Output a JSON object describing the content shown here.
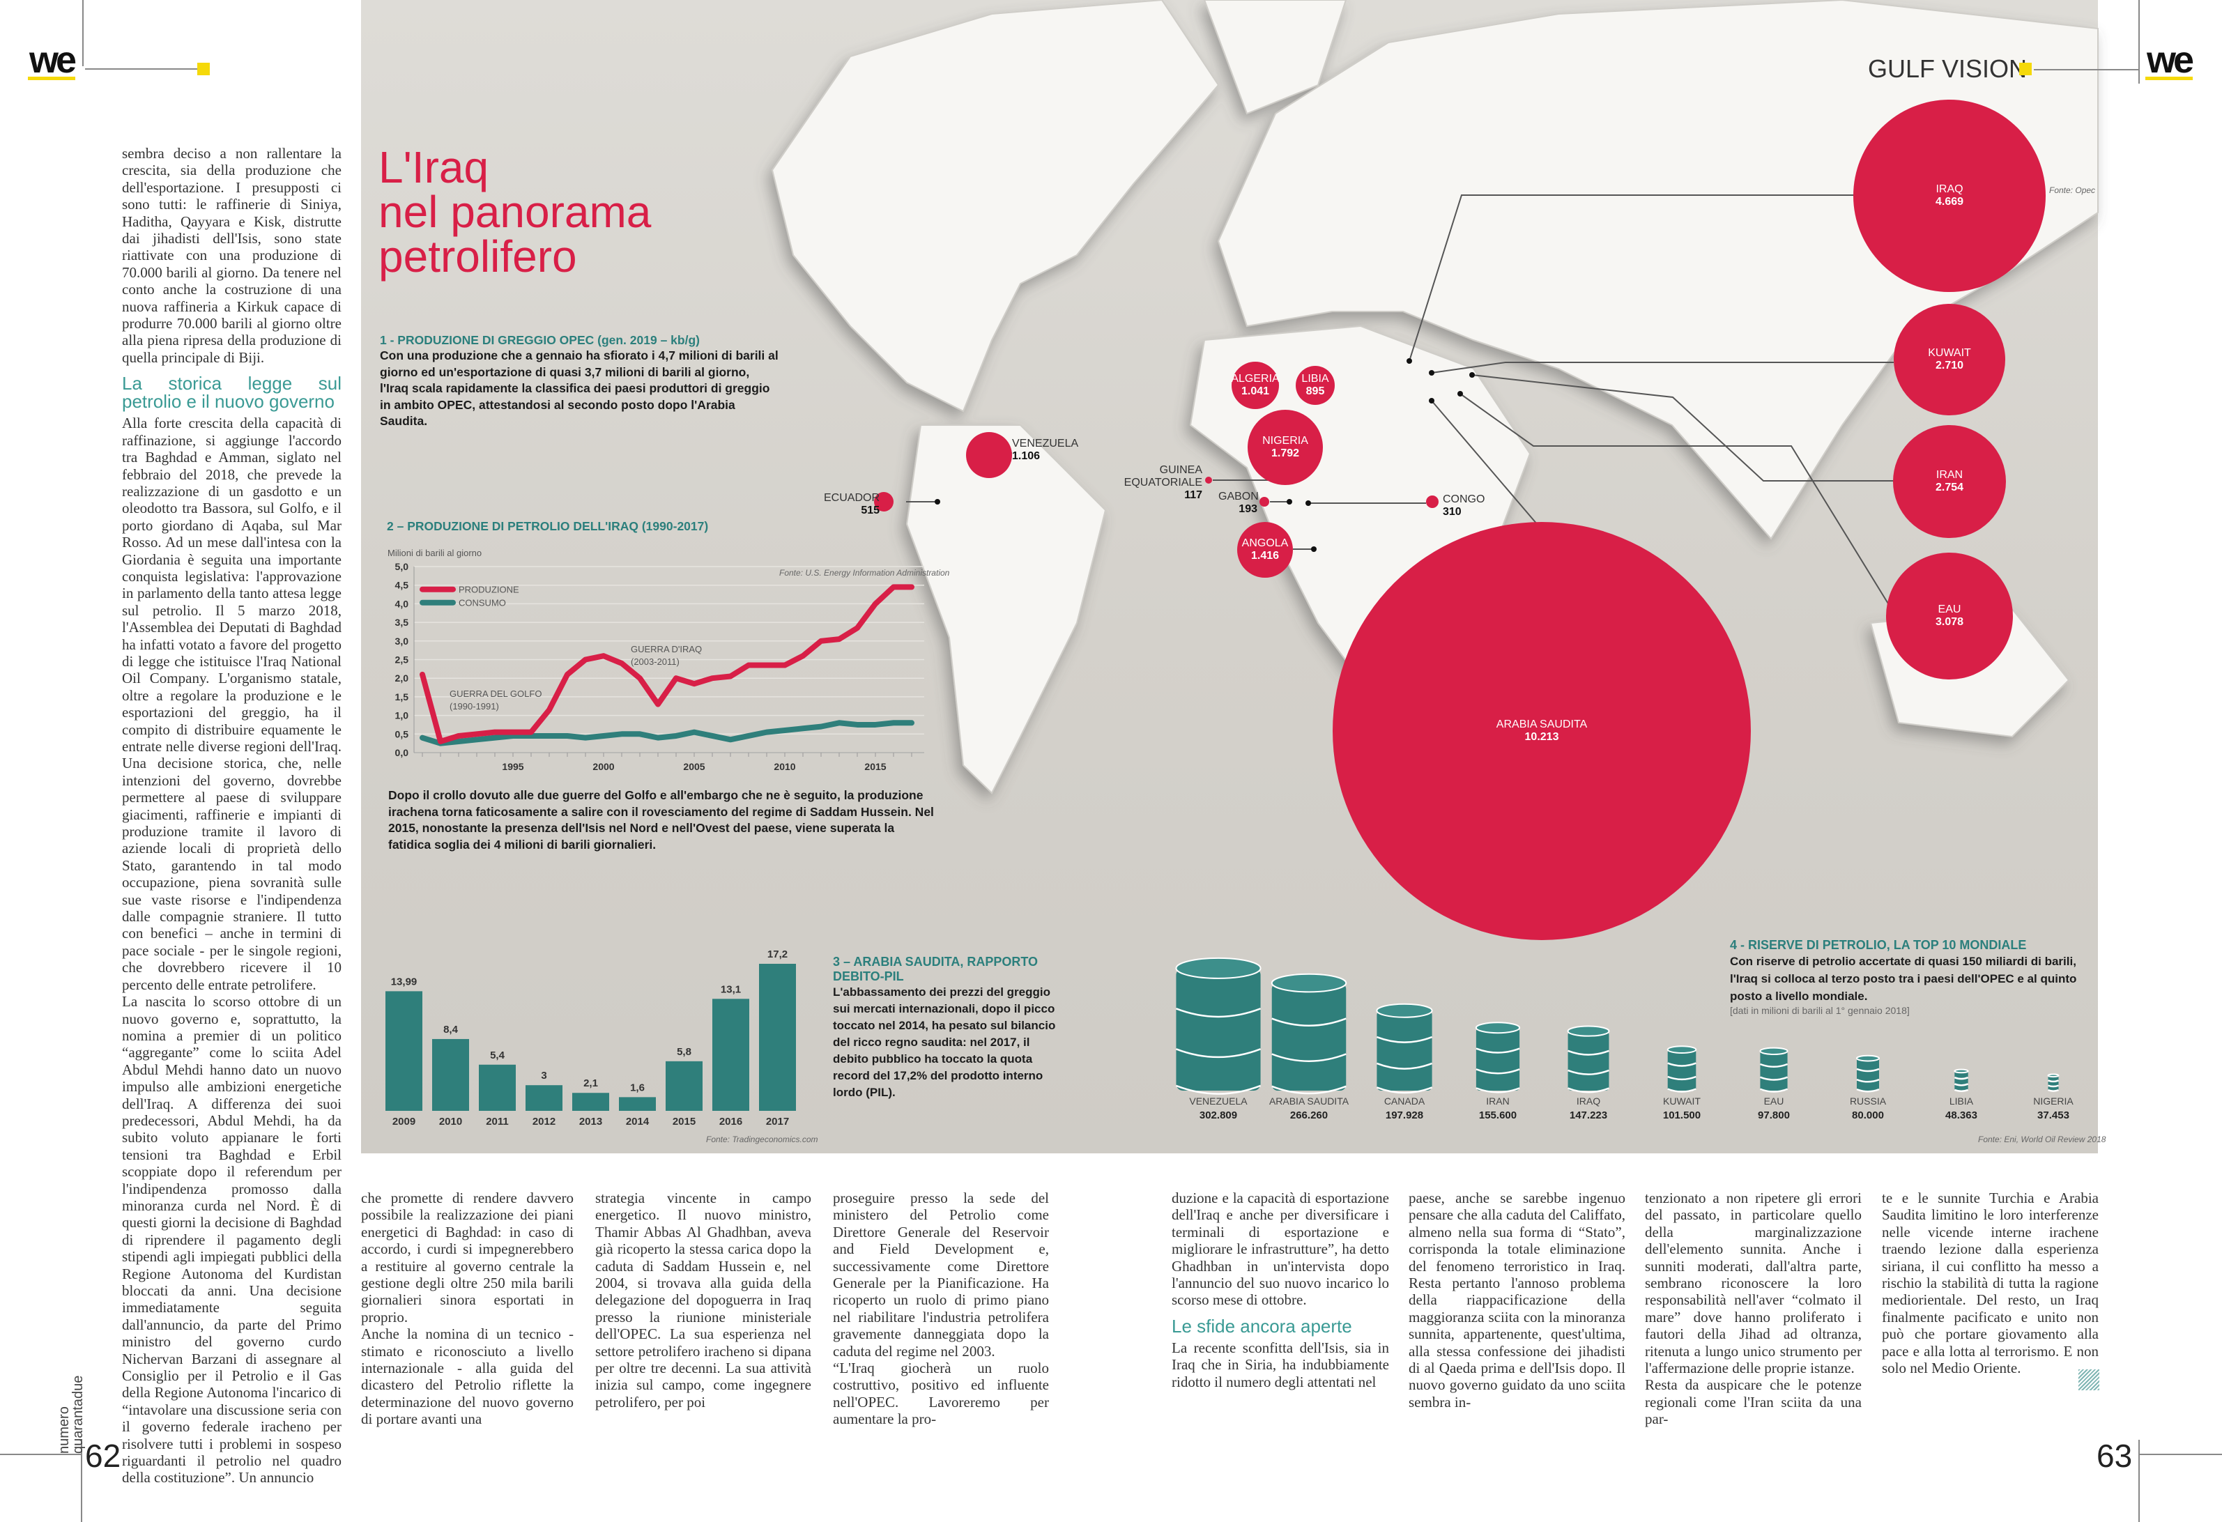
{
  "header": {
    "left_logo": "we",
    "right_logo": "we",
    "section_title": "GULF VISION",
    "accent_yellow": "#f5d90a",
    "accent_red": "#d81f47",
    "accent_teal": "#2b7f7c"
  },
  "infographic": {
    "title_lines": [
      "L'Iraq",
      "nel panorama",
      "petrolifero"
    ],
    "section1": {
      "heading": "1 - PRODUZIONE DI GREGGIO OPEC (gen. 2019 – kb/g)",
      "body": "Con una produzione che a gennaio ha sfiorato i 4,7 milioni di barili al giorno ed un'esportazione di quasi 3,7 milioni di barili al giorno, l'Iraq scala rapidamente la classifica dei paesi produttori di greggio in ambito OPEC, attestandosi al secondo posto dopo l'Arabia Saudita.",
      "source": "Fonte: Opec",
      "bubbles": [
        {
          "name": "IRAQ",
          "value": "4.669"
        },
        {
          "name": "KUWAIT",
          "value": "2.710"
        },
        {
          "name": "IRAN",
          "value": "2.754"
        },
        {
          "name": "EAU",
          "value": "3.078"
        },
        {
          "name": "ARABIA SAUDITA",
          "value": "10.213"
        },
        {
          "name": "VENEZUELA",
          "value": "1.106"
        },
        {
          "name": "ECUADOR",
          "value": "515"
        },
        {
          "name": "ALGERIA",
          "value": "1.041"
        },
        {
          "name": "LIBIA",
          "value": "895"
        },
        {
          "name": "NIGERIA",
          "value": "1.792"
        },
        {
          "name": "GUINEA EQUATORIALE",
          "value": "117"
        },
        {
          "name": "GABON",
          "value": "193"
        },
        {
          "name": "CONGO",
          "value": "310"
        },
        {
          "name": "ANGOLA",
          "value": "1.416"
        }
      ]
    },
    "section2": {
      "heading": "2 – PRODUZIONE DI PETROLIO DELL'IRAQ (1990-2017)",
      "body": "Dopo il crollo dovuto alle due guerre del Golfo e all'embargo che ne è seguito, la produzione irachena torna faticosamente a salire con il rovesciamento del regime di Saddam Hussein. Nel 2015, nonostante la presenza dell'Isis nel Nord e nell'Ovest del paese, viene superata la fatidica soglia dei 4 milioni di barili giornalieri."
    },
    "section3": {
      "heading_lines": [
        "3 – ARABIA SAUDITA, RAPPORTO",
        "DEBITO-PIL"
      ],
      "body": "L'abbassamento dei prezzi del greggio sui mercati internazionali, dopo il picco toccato nel 2014, ha pesato sul bilancio del ricco regno saudita: nel 2017, il debito pubblico ha toccato la quota record del 17,2% del prodotto interno lordo (PIL)."
    },
    "section4": {
      "heading": "4 - RISERVE DI PETROLIO, LA TOP 10 MONDIALE",
      "body": "Con riserve di petrolio accertate di quasi 150 miliardi di barili, l'Iraq si colloca al terzo posto tra i paesi dell'OPEC e al quinto posto a livello mondiale.",
      "note": "[dati in milioni di barili al 1° gennaio 2018]"
    }
  },
  "chart_data": [
    {
      "type": "line",
      "title": "2 – PRODUZIONE DI PETROLIO DELL'IRAQ (1990-2017)",
      "ylabel": "Milioni di barili al giorno",
      "source": "Fonte: U.S. Energy Information Administration",
      "ylim": [
        0,
        5
      ],
      "yticks": [
        "0,0",
        "0,5",
        "1,0",
        "1,5",
        "2,0",
        "2,5",
        "3,0",
        "3,5",
        "4,0",
        "4,5",
        "5,0"
      ],
      "xticks": [
        "1995",
        "2000",
        "2005",
        "2010",
        "2015"
      ],
      "x": [
        1990,
        1991,
        1992,
        1993,
        1994,
        1995,
        1996,
        1997,
        1998,
        1999,
        2000,
        2001,
        2002,
        2003,
        2004,
        2005,
        2006,
        2007,
        2008,
        2009,
        2010,
        2011,
        2012,
        2013,
        2014,
        2015,
        2016,
        2017
      ],
      "series": [
        {
          "name": "PRODUZIONE",
          "color": "#d81f47",
          "values": [
            2.1,
            0.3,
            0.45,
            0.5,
            0.55,
            0.55,
            0.55,
            1.15,
            2.1,
            2.5,
            2.6,
            2.4,
            2.0,
            1.3,
            2.0,
            1.85,
            2.0,
            2.05,
            2.35,
            2.35,
            2.35,
            2.6,
            3.0,
            3.05,
            3.35,
            4.0,
            4.45,
            4.45
          ]
        },
        {
          "name": "CONSUMO",
          "color": "#2f7f7b",
          "values": [
            0.4,
            0.25,
            0.3,
            0.35,
            0.4,
            0.45,
            0.45,
            0.45,
            0.45,
            0.4,
            0.45,
            0.5,
            0.5,
            0.4,
            0.45,
            0.55,
            0.45,
            0.35,
            0.45,
            0.55,
            0.6,
            0.65,
            0.7,
            0.8,
            0.75,
            0.75,
            0.8,
            0.8
          ]
        }
      ],
      "annotations": [
        {
          "lines": [
            "GUERRA DEL GOLFO",
            "(1990-1991)"
          ],
          "year": 1991.5,
          "value": 1.5
        },
        {
          "lines": [
            "GUERRA D'IRAQ",
            "(2003-2011)"
          ],
          "year": 2001.5,
          "value": 2.7
        }
      ],
      "legend": "top-left"
    },
    {
      "type": "bar",
      "title": "3 – ARABIA SAUDITA, RAPPORTO DEBITO-PIL",
      "categories": [
        "2009",
        "2010",
        "2011",
        "2012",
        "2013",
        "2014",
        "2015",
        "2016",
        "2017"
      ],
      "values": [
        13.99,
        8.4,
        5.4,
        3,
        2.1,
        1.6,
        5.8,
        13.1,
        17.2
      ],
      "labels": [
        "13,99",
        "8,4",
        "5,4",
        "3",
        "2,1",
        "1,6",
        "5,8",
        "13,1",
        "17,2"
      ],
      "ylim": [
        0,
        17.2
      ],
      "color": "#2f7f7b",
      "source": "Fonte: Tradingeconomics.com"
    },
    {
      "type": "bar",
      "title": "4 - RISERVE DI PETROLIO, LA TOP 10 MONDIALE",
      "categories": [
        "VENEZUELA",
        "ARABIA SAUDITA",
        "CANADA",
        "IRAN",
        "IRAQ",
        "KUWAIT",
        "EAU",
        "RUSSIA",
        "LIBIA",
        "NIGERIA"
      ],
      "values": [
        302809,
        266260,
        197928,
        155600,
        147223,
        101500,
        97800,
        80000,
        48363,
        37453
      ],
      "labels": [
        "302.809",
        "266.260",
        "197.928",
        "155.600",
        "147.223",
        "101.500",
        "97.800",
        "80.000",
        "48.363",
        "37.453"
      ],
      "color": "#2f7f7b",
      "source": "Fonte: Eni, World Oil Review 2018"
    }
  ],
  "article": {
    "left_column": [
      "sembra deciso a non rallentare la crescita, sia della produzione che dell'esportazione. I presupposti ci sono tutti: le raffinerie di Siniya, Haditha, Qayyara e Kisk, distrutte dai jihadisti dell'Isis, sono state riattivate con una produzione di 70.000 barili al giorno. Da tenere nel conto anche la costruzione di una nuova raffineria a Kirkuk capace di produrre 70.000 barili al giorno oltre alla piena ripresa della produzione di quella principale di Biji.",
      "Alla forte crescita della capacità di raffinazione, si aggiunge l'accordo tra Baghdad e Amman, siglato nel febbraio del 2018, che prevede la realizzazione di un gasdotto e un oleodotto tra Bassora, sul Golfo, e il porto giordano di Aqaba, sul Mar Rosso. Ad un mese dall'intesa con la Giordania è seguita una importante conquista legislativa: l'approvazione in parlamento della tanto attesa legge sul petrolio. Il 5 marzo 2018, l'Assemblea dei Deputati di Baghdad ha infatti votato a favore del progetto di legge che istituisce l'Iraq National Oil Company. L'organismo statale, oltre a regolare la produzione e le esportazioni del greggio, ha il compito di distribuire equamente le entrate nelle diverse regioni dell'Iraq. Una decisione storica, che, nelle intenzioni del governo, dovrebbe permettere al paese di sviluppare giacimenti, raffinerie e impianti di produzione tramite il lavoro di aziende locali di proprietà dello Stato, garantendo in tal modo occupazione, piena sovranità sulle sue vaste risorse e l'indipendenza dalle compagnie straniere. Il tutto con benefici – anche in termini di pace sociale - per le singole regioni, che dovrebbero ricevere il 10 percento delle entrate petrolifere.",
      "La nascita lo scorso ottobre di un nuovo governo e, soprattutto, la nomina a premier di un politico “aggregante” come lo sciita Adel Abdul Mehdi hanno dato un nuovo impulso alle ambizioni energetiche dell'Iraq. A differenza dei suoi predecessori, Abdul Mehdi, ha da subito voluto appianare le forti tensioni tra Baghdad e Erbil scoppiate dopo il referendum per l'indipendenza promosso dalla minoranza curda nel Nord. È di questi giorni la decisione di Baghdad di riprendere il pagamento degli stipendi agli impiegati pubblici della Regione Autonoma del Kurdistan bloccati da anni. Una decisione immediatamente seguita dall'annuncio, da parte del Primo ministro del governo curdo Nichervan Barzani di assegnare al Consiglio per il Petrolio e il Gas della Regione Autonoma l'incarico di “intavolare una discussione seria con il governo federale iracheno per risolvere tutti i problemi in sospeso riguardanti il petrolio nel quadro della costituzione”. Un annuncio"
    ],
    "subhead1": "La storica legge sul petrolio e il nuovo governo",
    "subhead2": "Le sfide ancora aperte",
    "bottom_columns": [
      [
        "che promette di rendere davvero possibile la realizzazione dei piani energetici di Baghdad: in caso di accordo, i curdi si impegnerebbero a restituire al governo centrale la gestione degli oltre 250 mila barili giornalieri sinora esportati in proprio.",
        "Anche la nomina di un tecnico - stimato e riconosciuto a livello internazionale - alla guida del dicastero del Petrolio riflette la determinazione del nuovo governo di portare avanti una"
      ],
      [
        "strategia vincente in campo energetico. Il nuovo ministro, Thamir Abbas Al Ghadhban, aveva già ricoperto la stessa carica dopo la caduta di Saddam Hussein e, nel 2004, si trovava alla guida della delegazione del dopoguerra in Iraq presso la riunione ministeriale dell'OPEC. La sua esperienza nel settore petrolifero iracheno si dipana per oltre tre decenni. La sua attività inizia sul campo, come ingegnere petrolifero, per poi"
      ],
      [
        "proseguire presso la sede del ministero del Petrolio come Direttore Generale del Reservoir and Field Development e, successivamente come Direttore Generale per la Pianificazione. Ha ricoperto un ruolo di primo piano nel riabilitare l'industria petrolifera gravemente danneggiata dopo la caduta del regime nel 2003.",
        "“L'Iraq giocherà un ruolo costruttivo, positivo ed influente nell'OPEC. Lavoreremo per aumentare la pro-"
      ],
      [
        "duzione e la capacità di esportazione dell'Iraq e anche per diversificare i terminali di esportazione e migliorare le infrastrutture”, ha detto Ghadhban in un'intervista dopo l'annuncio del suo nuovo incarico lo scorso mese di ottobre.",
        "La recente sconfitta dell'Isis, sia in Iraq che in Siria, ha indubbiamente ridotto il numero degli attentati nel"
      ],
      [
        "paese, anche se sarebbe ingenuo pensare che alla caduta del Califfato, almeno nella sua forma di “Stato”, corrisponda la totale eliminazione del fenomeno terroristico in Iraq. Resta pertanto l'annoso problema della riappacificazione della maggioranza sciita con la minoranza sunnita, appartenente, quest'ultima, alla stessa confessione dei jihadisti di al Qaeda prima e dell'Isis dopo. Il nuovo governo guidato da uno sciita sembra in-"
      ],
      [
        "tenzionato a non ripetere gli errori del passato, in particolare quello della marginalizzazione dell'elemento sunnita. Anche i sunniti moderati, dall'altra parte, sembrano riconoscere la loro responsabilità nell'aver “colmato il mare” dove hanno proliferato i fautori della Jihad ad oltranza, ritenuta a lungo unico strumento per l'affermazione delle proprie istanze.",
        "Resta da auspicare che le potenze regionali come l'Iran sciita da una par-"
      ],
      [
        "te e le sunnite Turchia e Arabia Saudita limitino le loro interferenze nelle vicende interne irachene traendo lezione dalla esperienza siriana, il cui conflitto ha messo a rischio la stabilità di tutta la ragione mediorientale. Del resto, un Iraq finalmente pacificato e unito non può che portare giovamento alla pace e alla lotta al terrorismo. E non solo nel Medio Oriente."
      ]
    ]
  },
  "footer": {
    "left_page": "62",
    "right_page": "63",
    "issue_line1": "numero",
    "issue_line2": "quarantadue"
  }
}
